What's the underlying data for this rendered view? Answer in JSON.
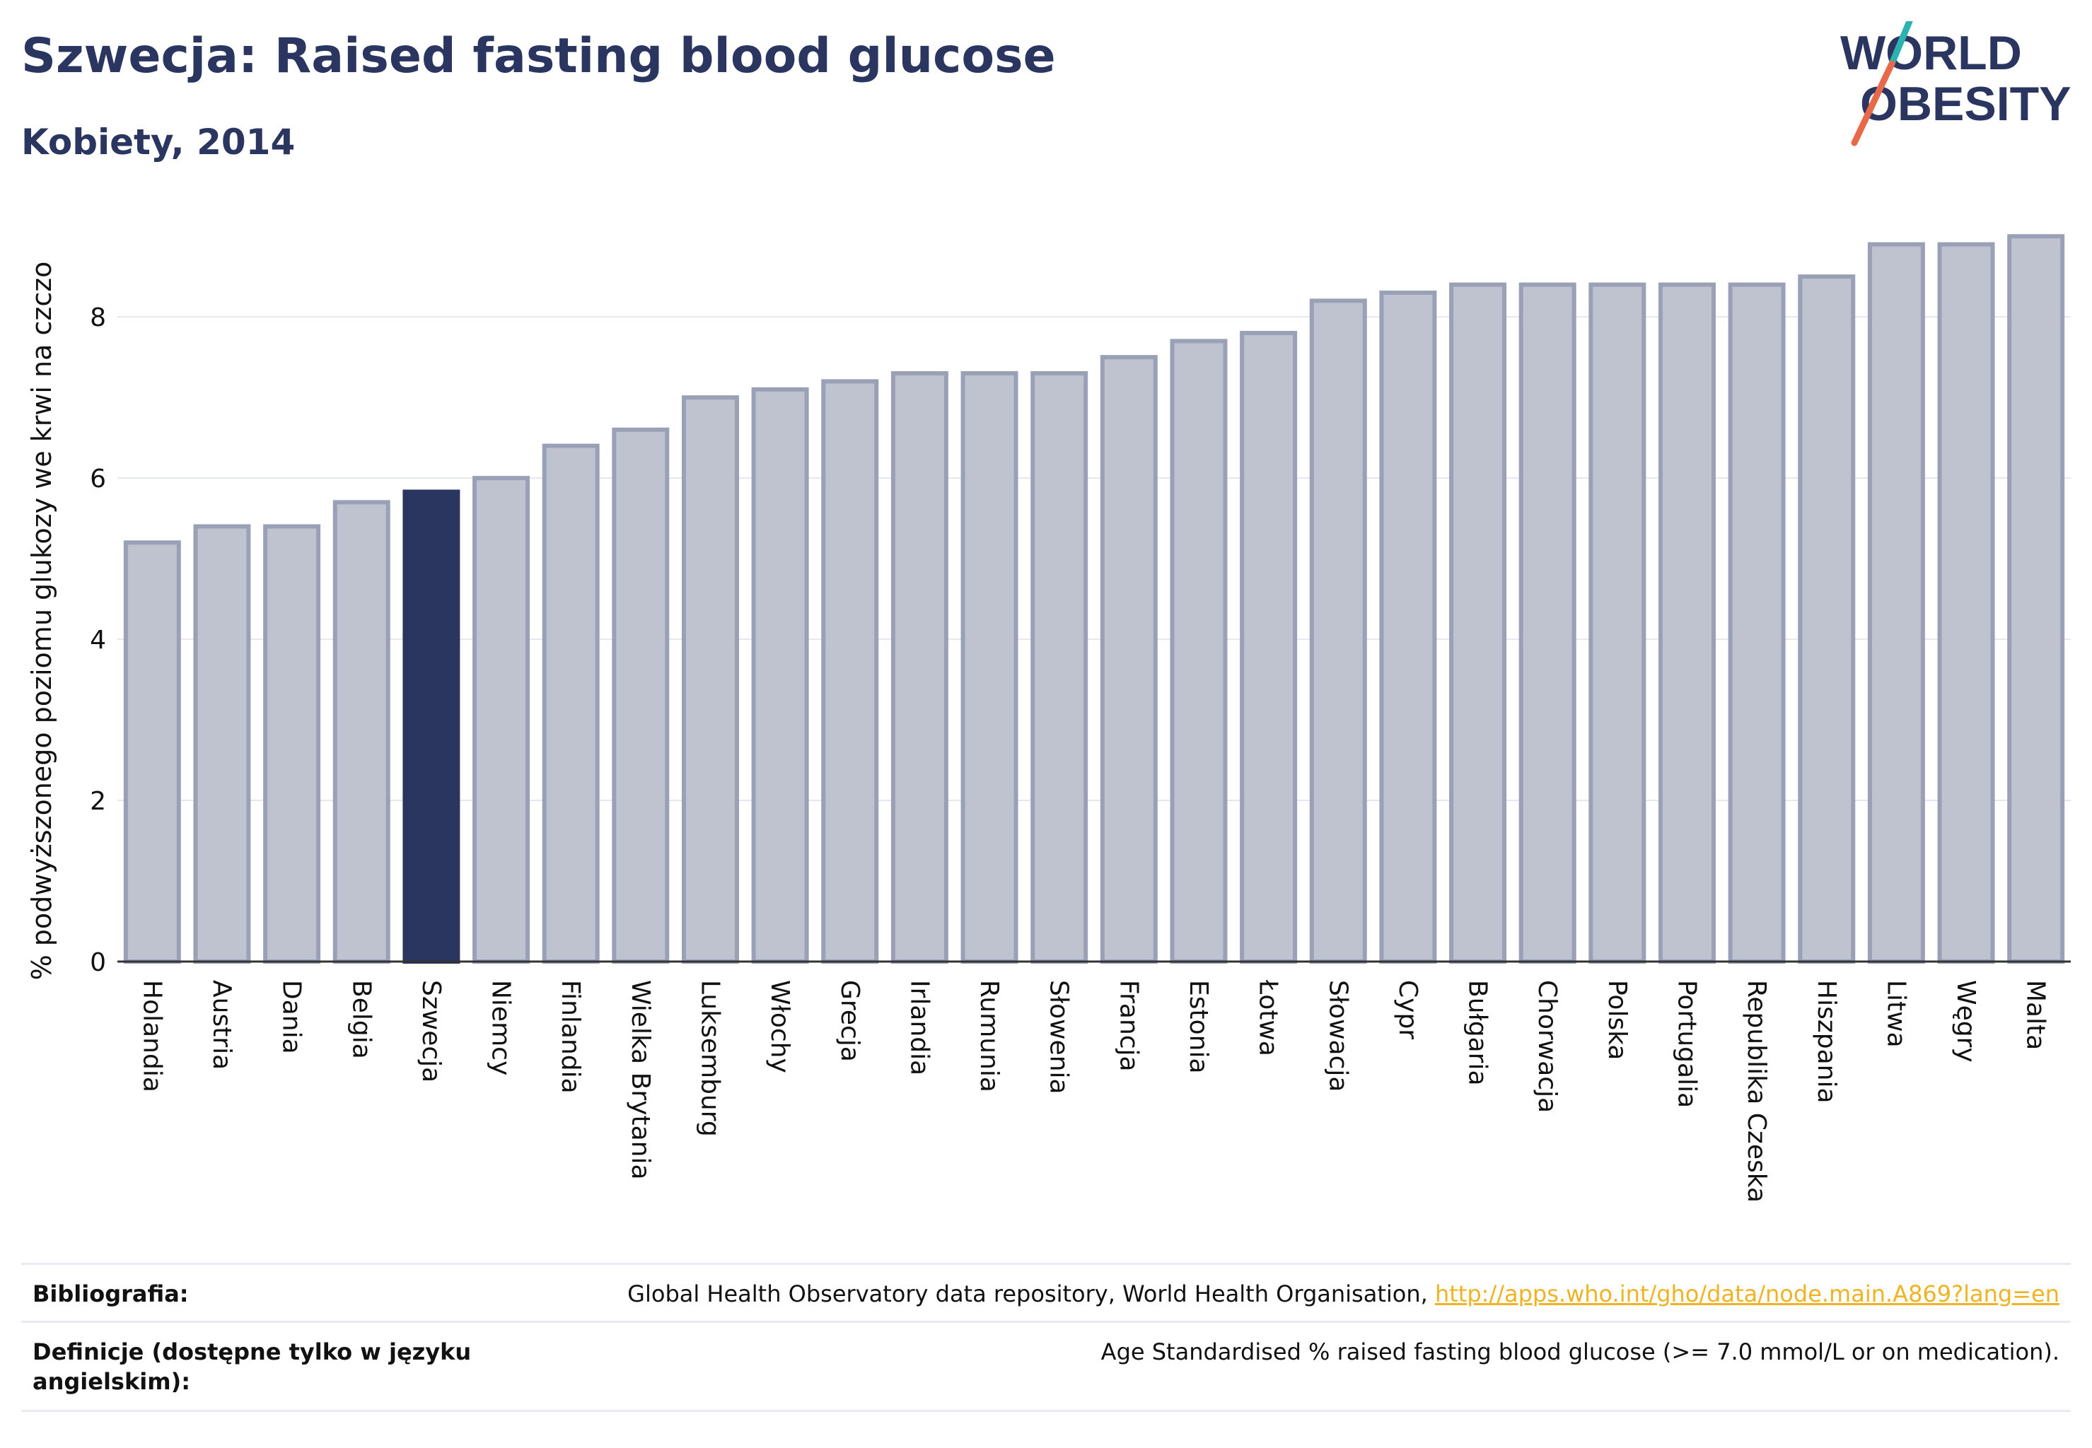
{
  "header": {
    "title": "Szwecja: Raised fasting blood glucose",
    "subtitle": "Kobiety, 2014"
  },
  "logo": {
    "line1": "WORLD",
    "line2": "OBESITY"
  },
  "colors": {
    "bar": "#bfc3d0",
    "bar_border": "#9aa0b6",
    "highlight": "#2a3560",
    "text": "#2a3560",
    "grid": "#e4e7ee",
    "link": "#f0b323"
  },
  "chart_data": {
    "type": "bar",
    "title": "Szwecja: Raised fasting blood glucose",
    "subtitle": "Kobiety, 2014",
    "xlabel": "",
    "ylabel": "% podwyższonego poziomu glukozy we krwi na czczo",
    "ylim": [
      0,
      9.3
    ],
    "yticks": [
      0,
      2,
      4,
      6,
      8
    ],
    "grid": true,
    "highlight": "Szwecja",
    "categories": [
      "Holandia",
      "Austria",
      "Dania",
      "Belgia",
      "Szwecja",
      "Niemcy",
      "Finlandia",
      "Wielka Brytania",
      "Luksemburg",
      "Włochy",
      "Grecja",
      "Irlandia",
      "Rumunia",
      "Słowenia",
      "Francja",
      "Estonia",
      "Łotwa",
      "Słowacja",
      "Cypr",
      "Bułgaria",
      "Chorwacja",
      "Polska",
      "Portugalia",
      "Republika Czeska",
      "Hiszpania",
      "Litwa",
      "Węgry",
      "Malta"
    ],
    "values": [
      5.2,
      5.4,
      5.4,
      5.7,
      5.83,
      6.0,
      6.4,
      6.6,
      7.0,
      7.1,
      7.2,
      7.3,
      7.3,
      7.3,
      7.5,
      7.7,
      7.8,
      8.2,
      8.3,
      8.4,
      8.4,
      8.4,
      8.4,
      8.4,
      8.5,
      8.9,
      8.9,
      9.0
    ]
  },
  "footer": {
    "bibliography_label": "Bibliografia:",
    "bibliography_text": "Global Health Observatory data repository, World Health Organisation, ",
    "bibliography_link": "http://apps.who.int/gho/data/node.main.A869?lang=en",
    "definition_label": "Definicje (dostępne tylko w języku angielskim):",
    "definition_text": "Age Standardised % raised fasting blood glucose (>= 7.0 mmol/L or on medication)."
  }
}
